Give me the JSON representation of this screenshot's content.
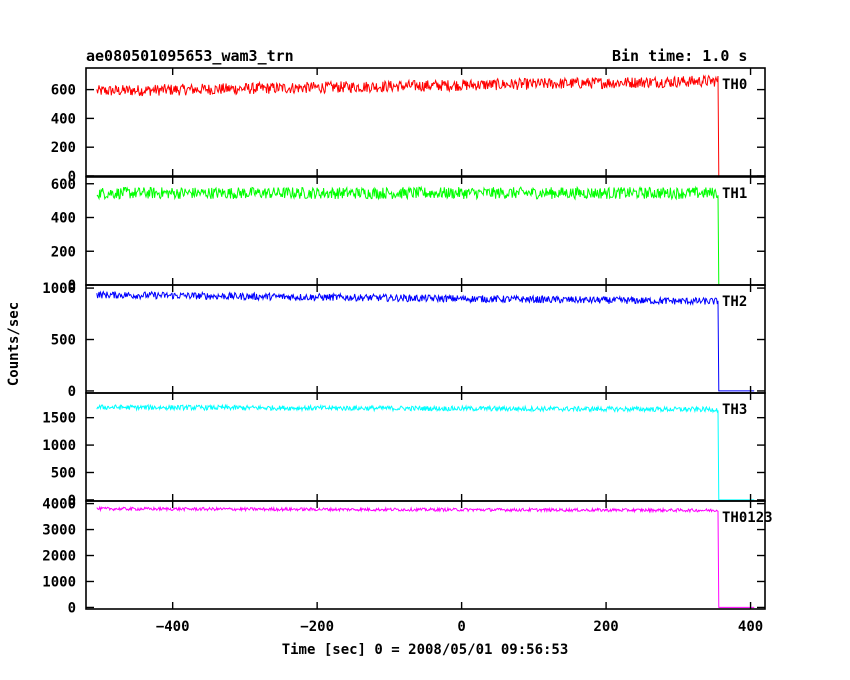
{
  "header": {
    "title": "ae080501095653_wam3_trn",
    "bin_time": "Bin time: 1.0 s"
  },
  "chart_data": {
    "type": "line",
    "xlabel": "Time [sec] 0 = 2008/05/01 09:56:53",
    "ylabel": "Counts/sec",
    "xlim": [
      -520,
      420
    ],
    "x_ticks": [
      -400,
      -200,
      0,
      200,
      400
    ],
    "x_data_range": [
      -505,
      355
    ],
    "drop_time": 355,
    "end_time": 405,
    "panels": [
      {
        "name": "TH0",
        "color": "#ff0000",
        "ylim": [
          0,
          750
        ],
        "y_ticks": [
          0,
          200,
          400,
          600
        ],
        "level_start": 590,
        "level_end": 660,
        "noise": 40,
        "after_drop": 0
      },
      {
        "name": "TH1",
        "color": "#00ff00",
        "ylim": [
          0,
          640
        ],
        "y_ticks": [
          0,
          200,
          400,
          600
        ],
        "level_start": 545,
        "level_end": 545,
        "noise": 35,
        "after_drop": 0
      },
      {
        "name": "TH2",
        "color": "#0000ff",
        "ylim": [
          -20,
          1030
        ],
        "y_ticks": [
          0,
          500,
          1000
        ],
        "level_start": 935,
        "level_end": 870,
        "noise": 35,
        "after_drop": 0
      },
      {
        "name": "TH3",
        "color": "#00ffff",
        "ylim": [
          -20,
          1950
        ],
        "y_ticks": [
          0,
          500,
          1000,
          1500
        ],
        "level_start": 1690,
        "level_end": 1650,
        "noise": 45,
        "after_drop": 0
      },
      {
        "name": "TH0123",
        "color": "#ff00ff",
        "ylim": [
          -60,
          4100
        ],
        "y_ticks": [
          0,
          1000,
          2000,
          3000,
          4000
        ],
        "level_start": 3800,
        "level_end": 3740,
        "noise": 60,
        "after_drop": 0
      }
    ]
  }
}
